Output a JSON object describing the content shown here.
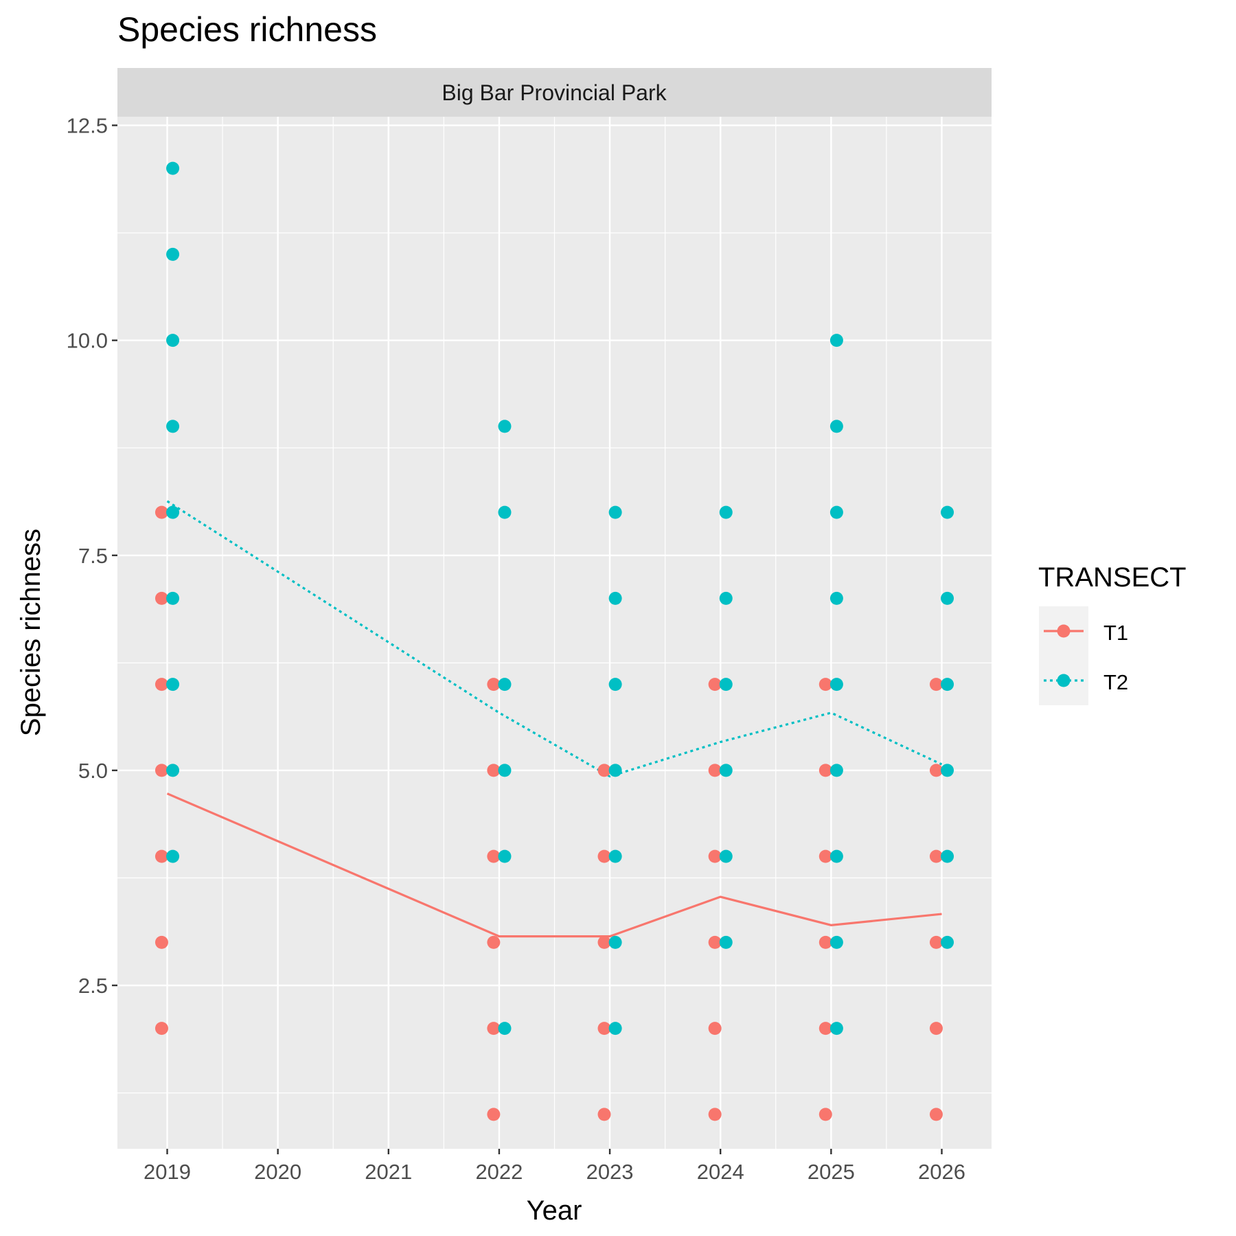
{
  "chart_data": {
    "type": "scatter",
    "title": "Species richness",
    "facet_label": "Big Bar Provincial Park",
    "xlabel": "Year",
    "ylabel": "Species richness",
    "x_ticks": [
      2019,
      2020,
      2021,
      2022,
      2023,
      2024,
      2025,
      2026
    ],
    "y_ticks": [
      2.5,
      5.0,
      7.5,
      10.0,
      12.5
    ],
    "y_tick_labels": [
      "2.5",
      "5.0",
      "7.5",
      "10.0",
      "12.5"
    ],
    "xlim": [
      2018.55,
      2026.45
    ],
    "ylim": [
      0.6,
      12.6
    ],
    "grid": true,
    "legend": {
      "title": "TRANSECT",
      "position": "right"
    },
    "series": [
      {
        "name": "T1",
        "color": "#F8766D",
        "line_style": "solid",
        "points": [
          {
            "x": 2019,
            "y": 2
          },
          {
            "x": 2019,
            "y": 3
          },
          {
            "x": 2019,
            "y": 4
          },
          {
            "x": 2019,
            "y": 5
          },
          {
            "x": 2019,
            "y": 6
          },
          {
            "x": 2019,
            "y": 7
          },
          {
            "x": 2019,
            "y": 8
          },
          {
            "x": 2022,
            "y": 1
          },
          {
            "x": 2022,
            "y": 2
          },
          {
            "x": 2022,
            "y": 3
          },
          {
            "x": 2022,
            "y": 4
          },
          {
            "x": 2022,
            "y": 5
          },
          {
            "x": 2022,
            "y": 6
          },
          {
            "x": 2023,
            "y": 1
          },
          {
            "x": 2023,
            "y": 2
          },
          {
            "x": 2023,
            "y": 3
          },
          {
            "x": 2023,
            "y": 4
          },
          {
            "x": 2023,
            "y": 5
          },
          {
            "x": 2024,
            "y": 1
          },
          {
            "x": 2024,
            "y": 2
          },
          {
            "x": 2024,
            "y": 3
          },
          {
            "x": 2024,
            "y": 4
          },
          {
            "x": 2024,
            "y": 5
          },
          {
            "x": 2024,
            "y": 6
          },
          {
            "x": 2025,
            "y": 1
          },
          {
            "x": 2025,
            "y": 2
          },
          {
            "x": 2025,
            "y": 3
          },
          {
            "x": 2025,
            "y": 4
          },
          {
            "x": 2025,
            "y": 5
          },
          {
            "x": 2025,
            "y": 6
          },
          {
            "x": 2026,
            "y": 1
          },
          {
            "x": 2026,
            "y": 2
          },
          {
            "x": 2026,
            "y": 3
          },
          {
            "x": 2026,
            "y": 4
          },
          {
            "x": 2026,
            "y": 5
          },
          {
            "x": 2026,
            "y": 6
          }
        ],
        "trend": [
          {
            "x": 2019,
            "y": 4.73
          },
          {
            "x": 2022,
            "y": 3.07
          },
          {
            "x": 2023,
            "y": 3.07
          },
          {
            "x": 2024,
            "y": 3.53
          },
          {
            "x": 2025,
            "y": 3.2
          },
          {
            "x": 2026,
            "y": 3.33
          }
        ]
      },
      {
        "name": "T2",
        "color": "#00BFC4",
        "line_style": "dotted",
        "points": [
          {
            "x": 2019,
            "y": 4
          },
          {
            "x": 2019,
            "y": 5
          },
          {
            "x": 2019,
            "y": 6
          },
          {
            "x": 2019,
            "y": 7
          },
          {
            "x": 2019,
            "y": 8
          },
          {
            "x": 2019,
            "y": 9
          },
          {
            "x": 2019,
            "y": 10
          },
          {
            "x": 2019,
            "y": 11
          },
          {
            "x": 2019,
            "y": 12
          },
          {
            "x": 2022,
            "y": 2
          },
          {
            "x": 2022,
            "y": 4
          },
          {
            "x": 2022,
            "y": 5
          },
          {
            "x": 2022,
            "y": 6
          },
          {
            "x": 2022,
            "y": 8
          },
          {
            "x": 2022,
            "y": 9
          },
          {
            "x": 2023,
            "y": 2
          },
          {
            "x": 2023,
            "y": 3
          },
          {
            "x": 2023,
            "y": 4
          },
          {
            "x": 2023,
            "y": 5
          },
          {
            "x": 2023,
            "y": 6
          },
          {
            "x": 2023,
            "y": 7
          },
          {
            "x": 2023,
            "y": 8
          },
          {
            "x": 2024,
            "y": 3
          },
          {
            "x": 2024,
            "y": 4
          },
          {
            "x": 2024,
            "y": 5
          },
          {
            "x": 2024,
            "y": 6
          },
          {
            "x": 2024,
            "y": 7
          },
          {
            "x": 2024,
            "y": 8
          },
          {
            "x": 2025,
            "y": 2
          },
          {
            "x": 2025,
            "y": 3
          },
          {
            "x": 2025,
            "y": 4
          },
          {
            "x": 2025,
            "y": 5
          },
          {
            "x": 2025,
            "y": 6
          },
          {
            "x": 2025,
            "y": 7
          },
          {
            "x": 2025,
            "y": 8
          },
          {
            "x": 2025,
            "y": 9
          },
          {
            "x": 2025,
            "y": 10
          },
          {
            "x": 2026,
            "y": 3
          },
          {
            "x": 2026,
            "y": 4
          },
          {
            "x": 2026,
            "y": 5
          },
          {
            "x": 2026,
            "y": 6
          },
          {
            "x": 2026,
            "y": 7
          },
          {
            "x": 2026,
            "y": 8
          }
        ],
        "trend": [
          {
            "x": 2019,
            "y": 8.13
          },
          {
            "x": 2022,
            "y": 5.67
          },
          {
            "x": 2023,
            "y": 4.93
          },
          {
            "x": 2024,
            "y": 5.33
          },
          {
            "x": 2025,
            "y": 5.67
          },
          {
            "x": 2026,
            "y": 5.07
          }
        ]
      }
    ]
  }
}
